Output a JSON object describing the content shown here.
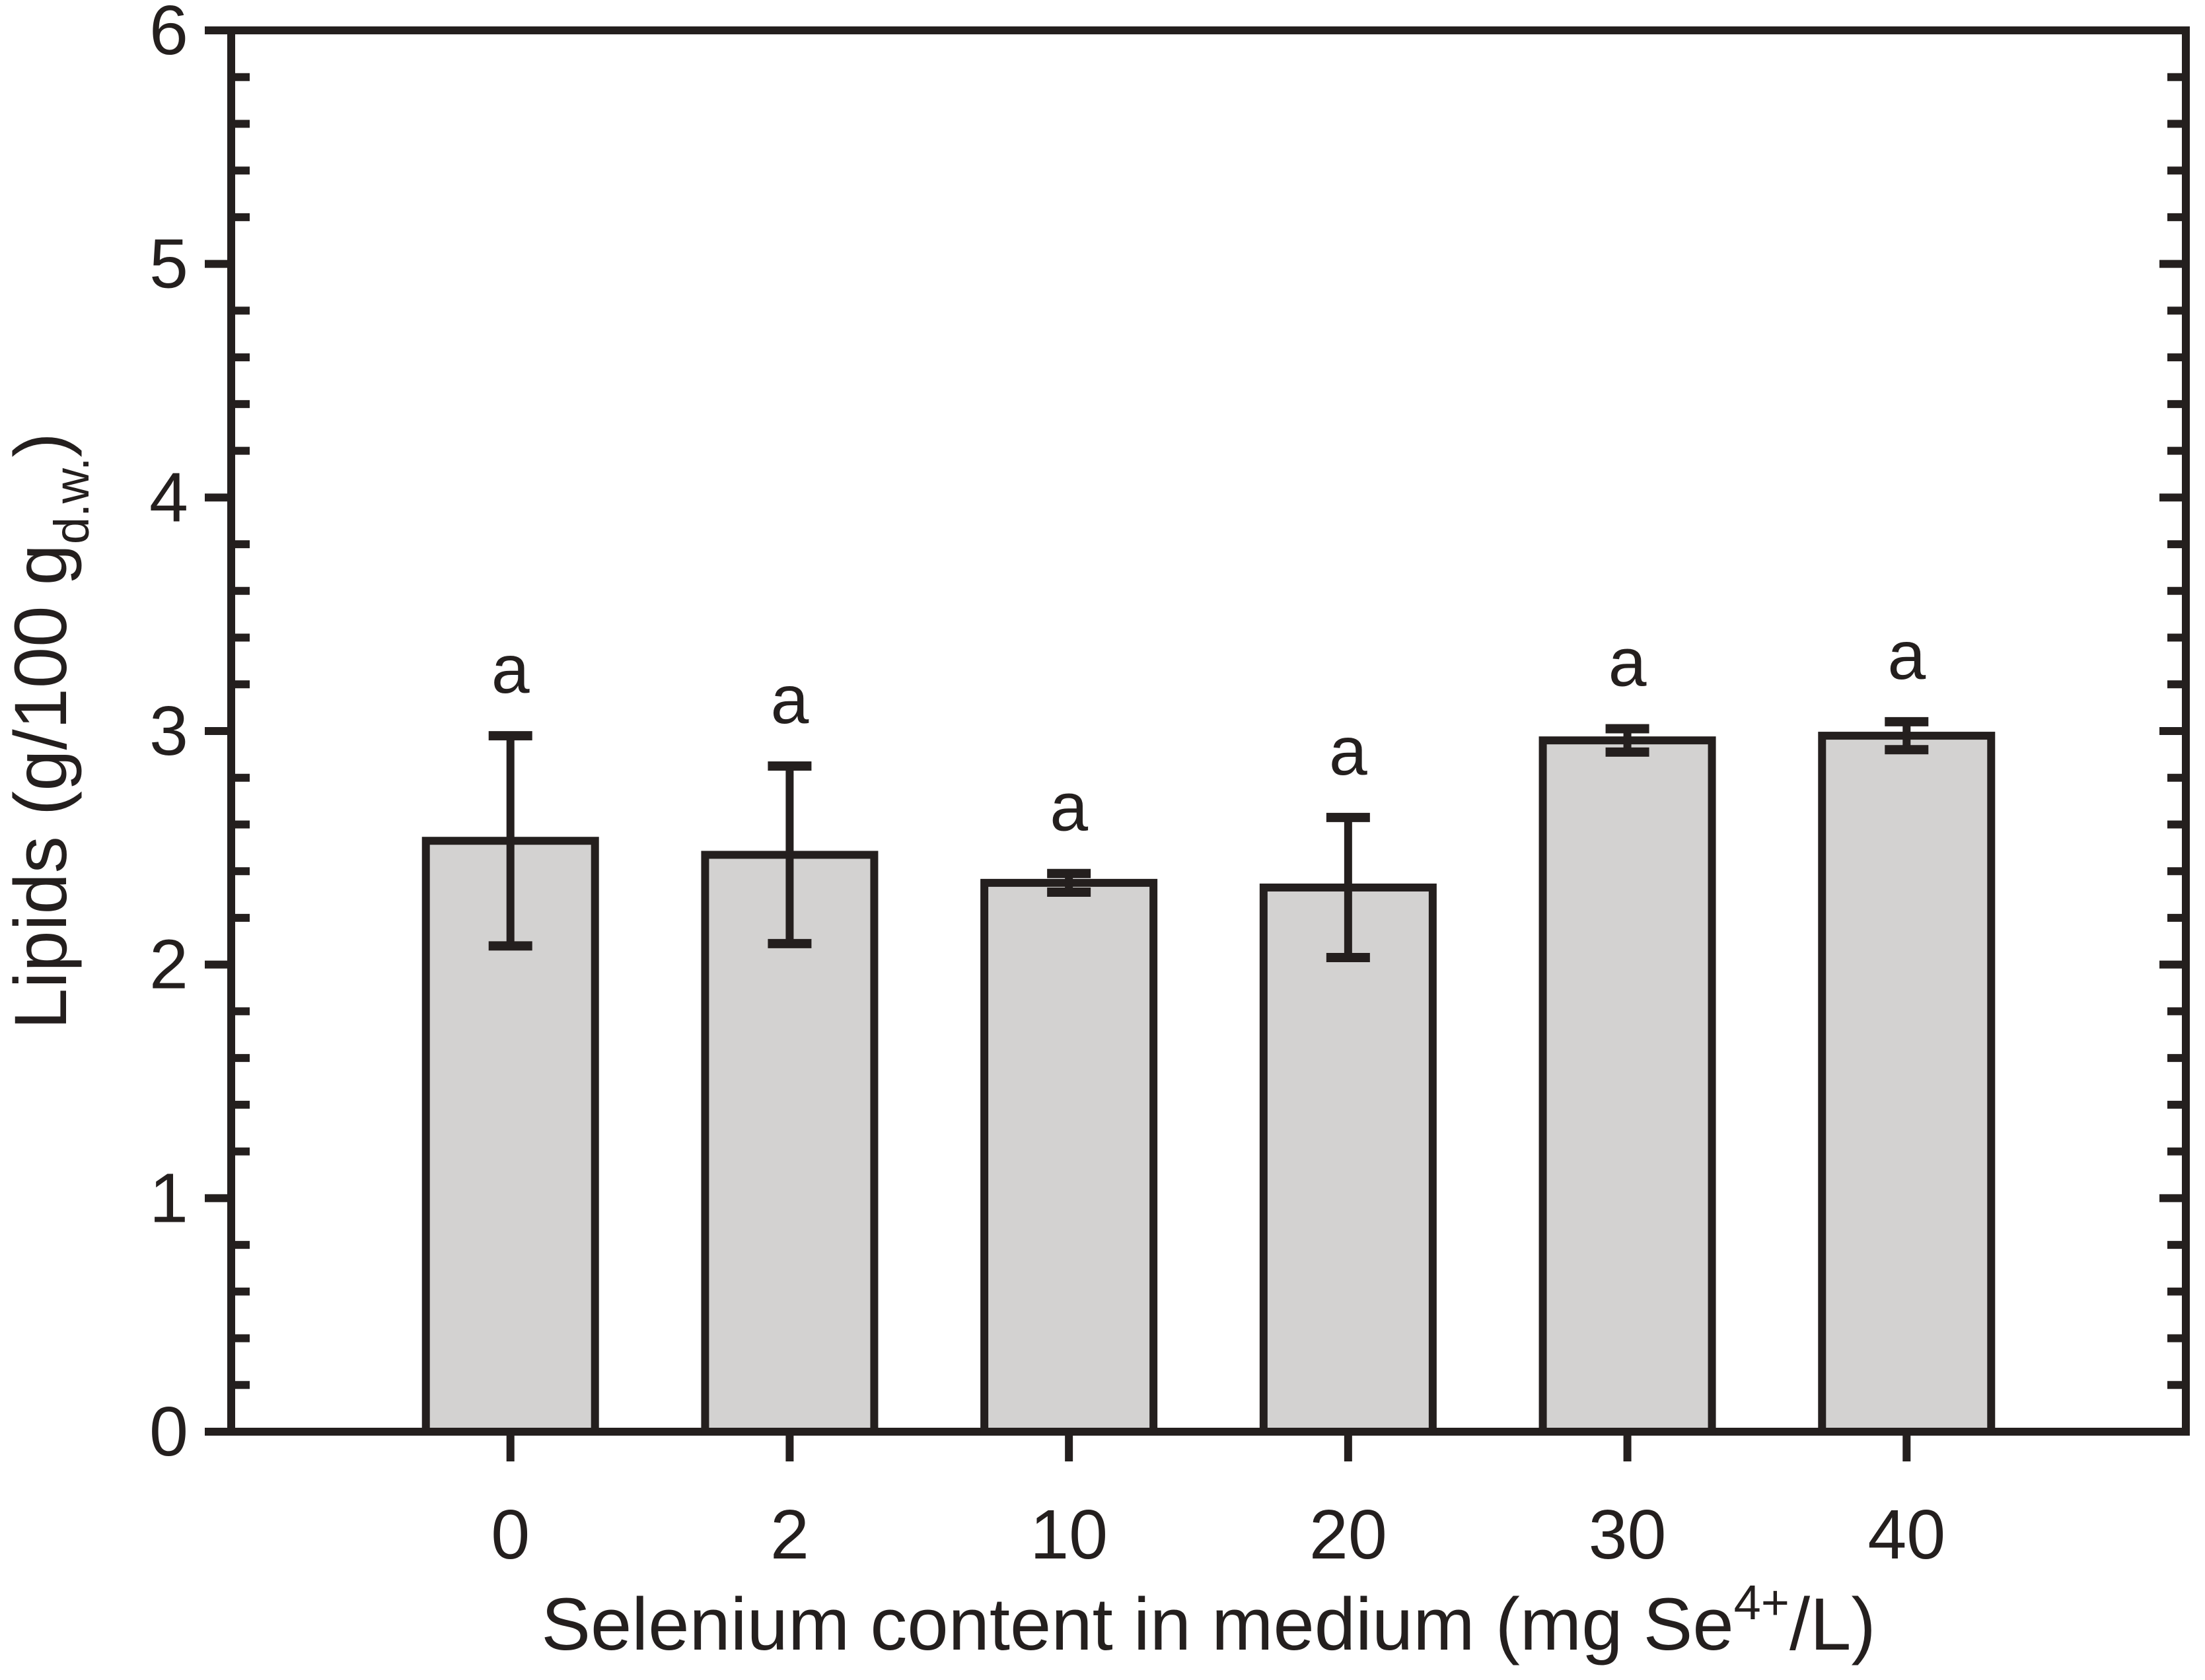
{
  "chart_data": {
    "type": "bar",
    "title": "",
    "categories": [
      "0",
      "2",
      "10",
      "20",
      "30",
      "40"
    ],
    "values": [
      2.53,
      2.47,
      2.35,
      2.33,
      2.96,
      2.98
    ],
    "error_up": [
      0.45,
      0.38,
      0.04,
      0.3,
      0.05,
      0.06
    ],
    "error_down": [
      0.45,
      0.38,
      0.04,
      0.3,
      0.05,
      0.06
    ],
    "bar_labels": [
      "a",
      "a",
      "a",
      "a",
      "a",
      "a"
    ],
    "xlabel": {
      "prefix": "Selenium content in medium (mg Se",
      "superscript": "4+",
      "suffix": "/L)"
    },
    "ylabel": {
      "prefix": "Lipids (g/100 g",
      "subscript": "d.w.",
      "suffix": ")"
    },
    "y_ticks": [
      "0",
      "1",
      "2",
      "3",
      "4",
      "5",
      "6"
    ],
    "ylim": [
      0,
      6
    ],
    "y_major_step": 1,
    "y_minor_step": 0.2,
    "grid": "off",
    "legend": "none",
    "frame": "box",
    "bar_fill_color": "#d3d2d1",
    "ink_color": "#241f1e",
    "background_color": "#ffffff"
  }
}
